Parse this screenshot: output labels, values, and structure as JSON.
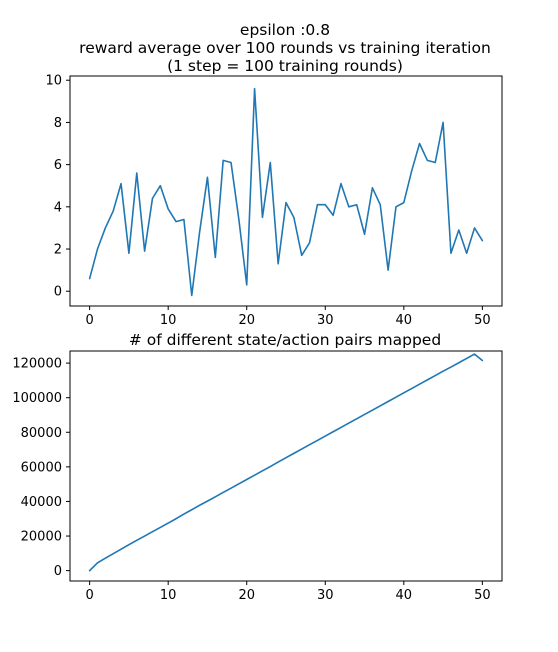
{
  "figure": {
    "title_lines": [
      "epsilon :0.8",
      "reward average over 100 rounds vs training iteration",
      "(1 step = 100 training rounds)"
    ]
  },
  "chart_data": [
    {
      "type": "line",
      "title": "",
      "xlabel": "",
      "ylabel": "",
      "xlim": [
        -2.5,
        52.5
      ],
      "ylim": [
        -0.7,
        10.2
      ],
      "xticks": [
        0,
        10,
        20,
        30,
        40,
        50
      ],
      "yticks": [
        0,
        2,
        4,
        6,
        8,
        10
      ],
      "grid": false,
      "legend": false,
      "color": "#1f77b4",
      "x": [
        0,
        1,
        2,
        3,
        4,
        5,
        6,
        7,
        8,
        9,
        10,
        11,
        12,
        13,
        14,
        15,
        16,
        17,
        18,
        19,
        20,
        21,
        22,
        23,
        24,
        25,
        26,
        27,
        28,
        29,
        30,
        31,
        32,
        33,
        34,
        35,
        36,
        37,
        38,
        39,
        40,
        41,
        42,
        43,
        44,
        45,
        46,
        47,
        48,
        49,
        50
      ],
      "series": [
        {
          "values": [
            0.6,
            2.0,
            3.0,
            3.8,
            5.1,
            1.8,
            5.6,
            1.9,
            4.4,
            5.0,
            3.9,
            3.3,
            3.4,
            -0.2,
            2.8,
            5.4,
            1.6,
            6.2,
            6.1,
            3.4,
            0.3,
            9.6,
            3.5,
            6.1,
            1.3,
            4.2,
            3.5,
            1.7,
            2.3,
            4.1,
            4.1,
            3.6,
            5.1,
            4.0,
            4.1,
            2.7,
            4.9,
            4.1,
            1.0,
            4.0,
            4.2,
            5.7,
            7.0,
            6.2,
            6.1,
            8.0,
            1.8,
            2.9,
            1.8,
            3.0,
            2.4
          ]
        }
      ]
    },
    {
      "type": "line",
      "title": "# of different state/action pairs mapped",
      "xlabel": "",
      "ylabel": "",
      "xlim": [
        -2.5,
        52.5
      ],
      "ylim": [
        -6000,
        127000
      ],
      "xticks": [
        0,
        10,
        20,
        30,
        40,
        50
      ],
      "yticks": [
        0,
        20000,
        40000,
        60000,
        80000,
        100000,
        120000
      ],
      "grid": false,
      "legend": false,
      "color": "#1f77b4",
      "x": [
        0,
        1,
        2,
        3,
        4,
        5,
        6,
        7,
        8,
        9,
        10,
        11,
        12,
        13,
        14,
        15,
        16,
        17,
        18,
        19,
        20,
        21,
        22,
        23,
        24,
        25,
        26,
        27,
        28,
        29,
        30,
        31,
        32,
        33,
        34,
        35,
        36,
        37,
        38,
        39,
        40,
        41,
        42,
        43,
        44,
        45,
        46,
        47,
        48,
        49,
        50
      ],
      "series": [
        {
          "values": [
            0,
            4500,
            7200,
            9800,
            12400,
            15000,
            17500,
            20000,
            22500,
            25000,
            27500,
            30000,
            32700,
            35200,
            37800,
            40200,
            42700,
            45200,
            47700,
            50200,
            52700,
            55200,
            57700,
            60200,
            62800,
            65300,
            67800,
            70300,
            72800,
            75300,
            77800,
            80300,
            82800,
            85300,
            87800,
            90300,
            92800,
            95300,
            97800,
            100300,
            102800,
            105300,
            107800,
            110300,
            112800,
            115300,
            117700,
            120200,
            122700,
            125200,
            121500
          ]
        }
      ]
    }
  ]
}
